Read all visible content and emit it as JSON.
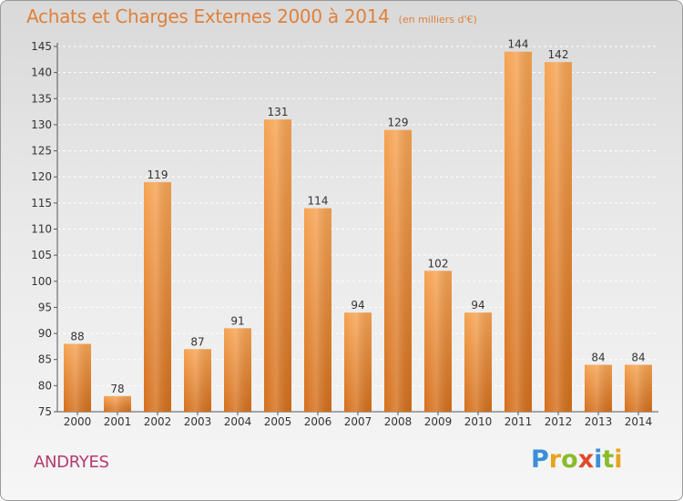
{
  "title": "Achats et Charges Externes 2000 à 2014",
  "subtitle": "(en milliers d'€)",
  "commune": "ANDRYES",
  "logo": {
    "text": "Proxiti",
    "letters": [
      {
        "ch": "P",
        "color": "#3a8fd8"
      },
      {
        "ch": "r",
        "color": "#e8a31c"
      },
      {
        "ch": "o",
        "color": "#8bbb2b"
      },
      {
        "ch": "x",
        "color": "#e04a2a"
      },
      {
        "ch": "i",
        "color": "#3a8fd8"
      },
      {
        "ch": "t",
        "color": "#8bbb2b"
      },
      {
        "ch": "i",
        "color": "#e8a31c"
      }
    ]
  },
  "colors": {
    "bar": "#f0923a",
    "bar_dark": "#d46f1c",
    "axis": "#555555",
    "grid": "#ffffff",
    "title": "#e0803a"
  },
  "chart_data": {
    "type": "bar",
    "title": "Achats et Charges Externes 2000 à 2014",
    "subtitle": "(en milliers d'€)",
    "xlabel": "",
    "ylabel": "",
    "categories": [
      "2000",
      "2001",
      "2002",
      "2003",
      "2004",
      "2005",
      "2006",
      "2007",
      "2008",
      "2009",
      "2010",
      "2011",
      "2012",
      "2013",
      "2014"
    ],
    "values": [
      88,
      78,
      119,
      87,
      91,
      131,
      114,
      94,
      129,
      102,
      94,
      144,
      142,
      84,
      84
    ],
    "ylim": [
      75,
      145
    ],
    "yticks": [
      75,
      80,
      85,
      90,
      95,
      100,
      105,
      110,
      115,
      120,
      125,
      130,
      135,
      140,
      145
    ],
    "grid": "horizontal",
    "legend": "none"
  }
}
